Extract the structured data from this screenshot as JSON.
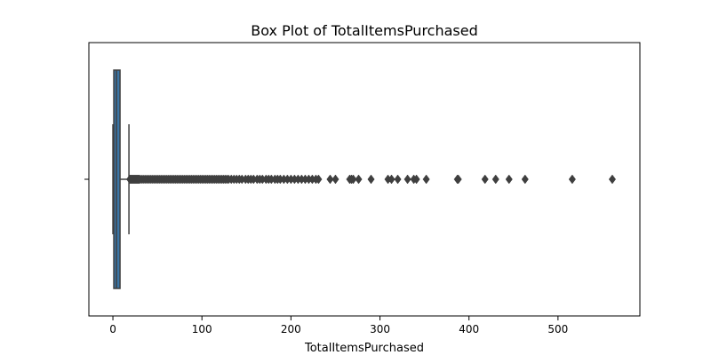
{
  "chart_data": {
    "type": "boxplot",
    "orientation": "horizontal",
    "title": "Box Plot of TotalItemsPurchased",
    "xlabel": "TotalItemsPurchased",
    "ylabel": "",
    "xlim": [
      -27,
      592
    ],
    "x_ticks": [
      0,
      100,
      200,
      300,
      400,
      500
    ],
    "x_tick_labels": [
      "0",
      "100",
      "200",
      "300",
      "400",
      "500"
    ],
    "y_ticks": [
      ""
    ],
    "grid": false,
    "legend": "none",
    "box": {
      "min": 0,
      "q1": 1,
      "median": 4,
      "q3": 8,
      "whisker_low": 0,
      "whisker_high": 18
    },
    "outliers": [
      19,
      20,
      21,
      22,
      23,
      24,
      25,
      26,
      27,
      28,
      29,
      30,
      32,
      34,
      36,
      38,
      40,
      42,
      44,
      46,
      48,
      50,
      52,
      54,
      56,
      58,
      60,
      62,
      64,
      66,
      68,
      70,
      72,
      74,
      76,
      78,
      80,
      82,
      84,
      86,
      88,
      90,
      92,
      94,
      96,
      98,
      100,
      102,
      104,
      106,
      108,
      110,
      112,
      114,
      116,
      118,
      120,
      122,
      124,
      126,
      128,
      130,
      133,
      136,
      139,
      142,
      145,
      149,
      152,
      155,
      158,
      162,
      165,
      168,
      172,
      175,
      178,
      182,
      185,
      188,
      192,
      196,
      200,
      204,
      208,
      212,
      216,
      220,
      224,
      228,
      231,
      244,
      250,
      266,
      268,
      270,
      276,
      290,
      309,
      313,
      320,
      331,
      338,
      341,
      352,
      387,
      388,
      418,
      430,
      445,
      463,
      516,
      561
    ],
    "colors": {
      "box_fill": "#3a75a6",
      "line": "#3f3f3f",
      "outlier": "#3f3f3f"
    }
  }
}
